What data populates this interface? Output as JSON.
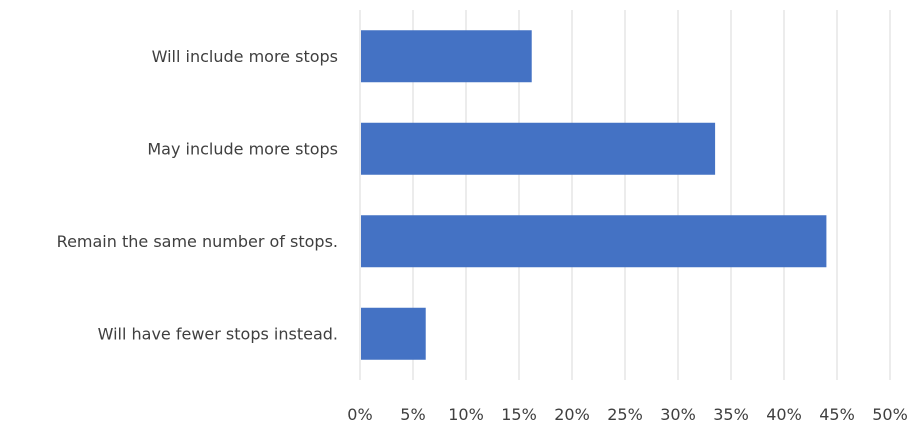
{
  "chart_data": {
    "type": "bar",
    "orientation": "horizontal",
    "categories": [
      "Will include more stops",
      "May include more stops",
      "Remain the same number of stops.",
      "Will have fewer stops instead."
    ],
    "values": [
      16.2,
      33.5,
      44.0,
      6.2
    ],
    "x_ticks": [
      "0%",
      "5%",
      "10%",
      "15%",
      "20%",
      "25%",
      "30%",
      "35%",
      "40%",
      "45%",
      "50%"
    ],
    "xlim": [
      0,
      50
    ],
    "grid": true,
    "legend": "none",
    "bar_color": "#4472c4",
    "grid_color": "#d9d9d9",
    "text_color": "#3f3f3f"
  }
}
